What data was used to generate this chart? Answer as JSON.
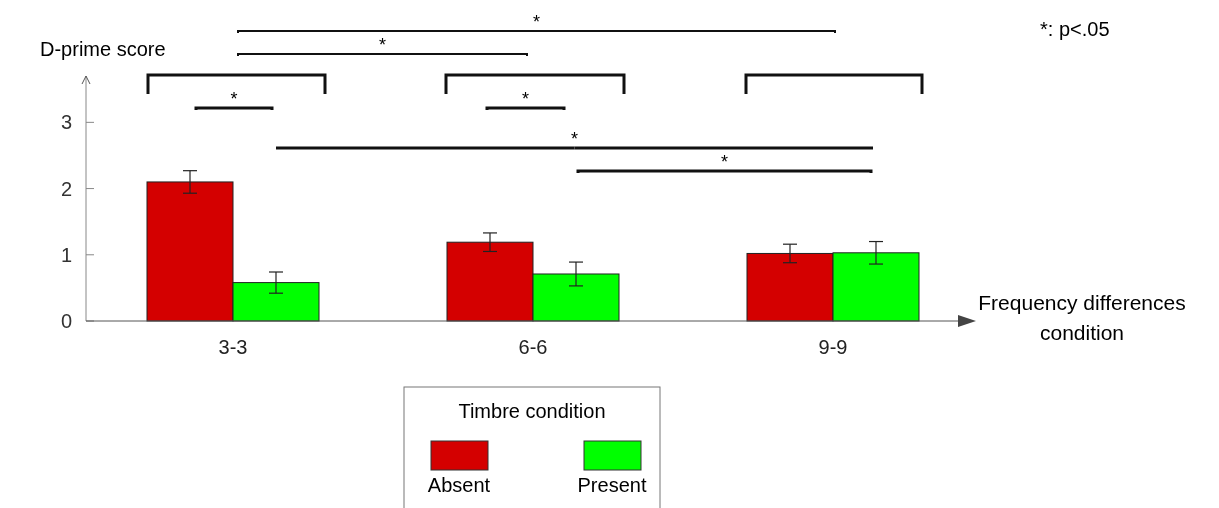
{
  "chart_data": {
    "type": "bar",
    "ylabel": "D-prime score",
    "xlabel": "Frequency differences condition",
    "legend_title": "Timbre condition",
    "legend": "bottom",
    "categories": [
      "3-3",
      "6-6",
      "9-9"
    ],
    "series": [
      {
        "name": "Absent",
        "color": "#d40000",
        "values": [
          2.1,
          1.19,
          1.02
        ],
        "errors": [
          0.17,
          0.14,
          0.14
        ]
      },
      {
        "name": "Present",
        "color": "#00ff00",
        "values": [
          0.58,
          0.71,
          1.03
        ],
        "errors": [
          0.16,
          0.18,
          0.17
        ]
      }
    ],
    "ylim": [
      0,
      3.7
    ],
    "yticks": [
      0,
      1,
      2,
      3
    ],
    "annotations": [
      "*",
      "*",
      "*",
      "*",
      "*",
      "*",
      "*: p<.05"
    ]
  }
}
